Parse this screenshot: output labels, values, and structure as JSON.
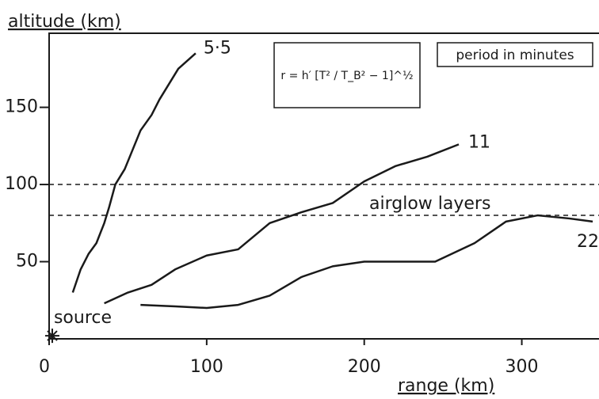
{
  "chart_data": {
    "type": "line",
    "title": "altitude (km)",
    "x_label": "range (km)",
    "xlim": [
      0,
      349
    ],
    "ylim": [
      0,
      198
    ],
    "xticks": [
      0,
      100,
      200,
      300
    ],
    "yticks": [
      50,
      100,
      150
    ],
    "legend_title": "period in minutes",
    "formula": "r = h′ [T² / T_B² − 1]^½",
    "reference_lines": [
      100,
      80
    ],
    "reference_label": "airglow layers",
    "source": {
      "label": "source",
      "x": 2,
      "y": 2
    },
    "series": [
      {
        "name": "5·5",
        "color": "#1a1a1a",
        "x": [
          15,
          20,
          25,
          30,
          35,
          38,
          42,
          48,
          52,
          58,
          65,
          70,
          76,
          82,
          93
        ],
        "values": [
          30,
          45,
          55,
          62,
          75,
          85,
          100,
          110,
          120,
          135,
          145,
          155,
          165,
          175,
          185
        ]
      },
      {
        "name": "11",
        "color": "#1a1a1a",
        "x": [
          35,
          50,
          65,
          80,
          100,
          120,
          140,
          160,
          180,
          200,
          220,
          240,
          260
        ],
        "values": [
          23,
          30,
          35,
          45,
          54,
          58,
          75,
          82,
          88,
          102,
          112,
          118,
          126
        ]
      },
      {
        "name": "22",
        "color": "#1a1a1a",
        "x": [
          58,
          80,
          100,
          120,
          140,
          160,
          180,
          200,
          220,
          245,
          270,
          290,
          310,
          330,
          345
        ],
        "values": [
          22,
          21,
          20,
          22,
          28,
          40,
          47,
          50,
          50,
          50,
          62,
          76,
          80,
          78,
          76
        ]
      }
    ]
  }
}
